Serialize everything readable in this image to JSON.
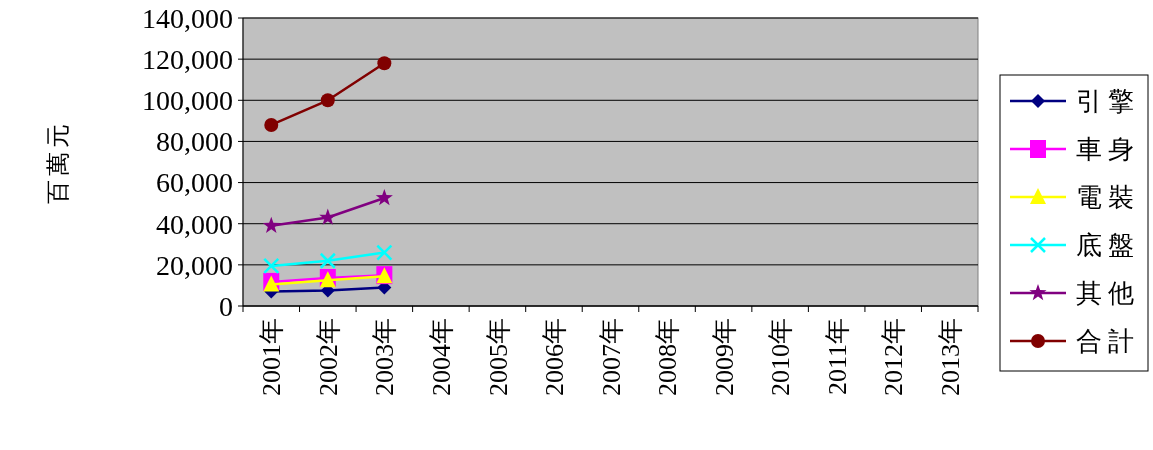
{
  "chart_data": {
    "type": "line",
    "ylabel": "百萬元",
    "categories": [
      "2001年",
      "2002年",
      "2003年",
      "2004年",
      "2005年",
      "2006年",
      "2007年",
      "2008年",
      "2009年",
      "2010年",
      "2011年",
      "2012年",
      "2013年"
    ],
    "ylim": [
      0,
      140000
    ],
    "yticks": [
      {
        "value": 0,
        "label": "0"
      },
      {
        "value": 20000,
        "label": "20,000"
      },
      {
        "value": 40000,
        "label": "40,000"
      },
      {
        "value": 60000,
        "label": "60,000"
      },
      {
        "value": 80000,
        "label": "80,000"
      },
      {
        "value": 100000,
        "label": "100,000"
      },
      {
        "value": 120000,
        "label": "120,000"
      },
      {
        "value": 140000,
        "label": "140,000"
      }
    ],
    "grid": "y",
    "legend": "right",
    "line_style": "solid",
    "series": [
      {
        "name": "引擎",
        "color": "#000080",
        "marker": "diamond",
        "values": [
          7000,
          7500,
          9000,
          null,
          null,
          null,
          null,
          null,
          null,
          null,
          null,
          null,
          null
        ]
      },
      {
        "name": "車身",
        "color": "#ff00ff",
        "marker": "square",
        "values": [
          11700,
          13600,
          15000,
          null,
          null,
          null,
          null,
          null,
          null,
          null,
          null,
          null,
          null
        ]
      },
      {
        "name": "電裝",
        "color": "#ffff00",
        "marker": "triangle",
        "values": [
          10500,
          12500,
          14500,
          null,
          null,
          null,
          null,
          null,
          null,
          null,
          null,
          null,
          null
        ]
      },
      {
        "name": "底盤",
        "color": "#00ffff",
        "marker": "cross",
        "values": [
          19500,
          22000,
          26000,
          null,
          null,
          null,
          null,
          null,
          null,
          null,
          null,
          null,
          null
        ]
      },
      {
        "name": "其他",
        "color": "#800080",
        "marker": "star",
        "values": [
          39000,
          43000,
          52500,
          null,
          null,
          null,
          null,
          null,
          null,
          null,
          null,
          null,
          null
        ]
      },
      {
        "name": "合計",
        "color": "#800000",
        "marker": "circle",
        "values": [
          88000,
          100000,
          118000,
          null,
          null,
          null,
          null,
          null,
          null,
          null,
          null,
          null,
          null
        ]
      }
    ]
  }
}
